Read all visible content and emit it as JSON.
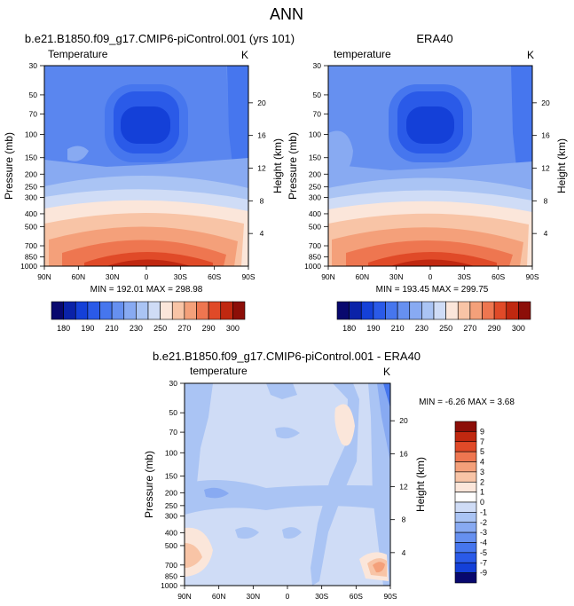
{
  "super_title": "ANN",
  "chart_data": [
    {
      "id": "model",
      "type": "contour",
      "title": "b.e21.B1850.f09_g17.CMIP6-piControl.001 (yrs 101)",
      "left_label": "Temperature",
      "right_label": "K",
      "ylabel": "Pressure (mb)",
      "y2label": "Height (km)",
      "xticks": [
        "90N",
        "60N",
        "30N",
        "0",
        "30S",
        "60S",
        "90S"
      ],
      "pressure_levels": [
        30,
        50,
        70,
        100,
        150,
        200,
        250,
        300,
        400,
        500,
        700,
        850,
        1000
      ],
      "height_ticks": [
        4,
        8,
        12,
        16,
        20
      ],
      "min": 192.01,
      "max": 298.98,
      "min_label": "MIN =",
      "max_label": "MAX =",
      "stats_text": "MIN = 192.01  MAX = 298.98",
      "levels": [
        180,
        185,
        190,
        195,
        200,
        210,
        220,
        230,
        240,
        250,
        260,
        270,
        280,
        290,
        295,
        300
      ]
    },
    {
      "id": "obs",
      "type": "contour",
      "title": "ERA40",
      "left_label": "temperature",
      "right_label": "K",
      "ylabel": "Pressure (mb)",
      "y2label": "Height (km)",
      "xticks": [
        "90N",
        "60N",
        "30N",
        "0",
        "30S",
        "60S",
        "90S"
      ],
      "pressure_levels": [
        30,
        50,
        70,
        100,
        150,
        200,
        250,
        300,
        400,
        500,
        700,
        850,
        1000
      ],
      "height_ticks": [
        4,
        8,
        12,
        16,
        20
      ],
      "min": 193.45,
      "max": 299.75,
      "min_label": "MIN =",
      "max_label": "MAX =",
      "stats_text": "MIN = 193.45  MAX = 299.75",
      "levels": [
        180,
        185,
        190,
        195,
        200,
        210,
        220,
        230,
        240,
        250,
        260,
        270,
        280,
        290,
        295,
        300
      ]
    },
    {
      "id": "diff",
      "type": "contour",
      "title": "b.e21.B1850.f09_g17.CMIP6-piControl.001 - ERA40",
      "left_label": "temperature",
      "right_label": "K",
      "ylabel": "Pressure (mb)",
      "y2label": "Height (km)",
      "xticks": [
        "90N",
        "60N",
        "30N",
        "0",
        "30S",
        "60S",
        "90S"
      ],
      "pressure_levels": [
        30,
        50,
        70,
        100,
        150,
        200,
        250,
        300,
        400,
        500,
        700,
        850,
        1000
      ],
      "height_ticks": [
        4,
        8,
        12,
        16,
        20
      ],
      "min": -6.26,
      "max": 3.68,
      "min_label": "MIN =",
      "max_label": "MAX =",
      "stats_text": "MIN =  -6.26  MAX =   3.68",
      "levels": [
        -9,
        -7,
        -5,
        -4,
        -3,
        -2,
        -1,
        0,
        1,
        2,
        3,
        4,
        5,
        7,
        9
      ]
    }
  ],
  "colorbar_abs": {
    "labels": [
      "180",
      "190",
      "210",
      "230",
      "250",
      "270",
      "290",
      "300"
    ],
    "colors": [
      "#08086e",
      "#0a22a8",
      "#1440d8",
      "#2a5ae8",
      "#4676ee",
      "#6690f0",
      "#88aaf2",
      "#aac4f4",
      "#cfdcf6",
      "#fbe6da",
      "#f8c4a6",
      "#f4a07a",
      "#ee7650",
      "#e04a28",
      "#c02810",
      "#8c0e08"
    ]
  },
  "colorbar_diff": {
    "labels": [
      "9",
      "7",
      "5",
      "4",
      "3",
      "2",
      "1",
      "0",
      "-1",
      "-2",
      "-3",
      "-4",
      "-5",
      "-7",
      "-9"
    ],
    "colors": [
      "#8c0e08",
      "#c02810",
      "#e04a28",
      "#ee7650",
      "#f4a07a",
      "#f8c4a6",
      "#fbe6da",
      "#ffffff",
      "#cfdcf6",
      "#aac4f4",
      "#88aaf2",
      "#6690f0",
      "#4676ee",
      "#2a5ae8",
      "#1440d8",
      "#08086e"
    ]
  }
}
